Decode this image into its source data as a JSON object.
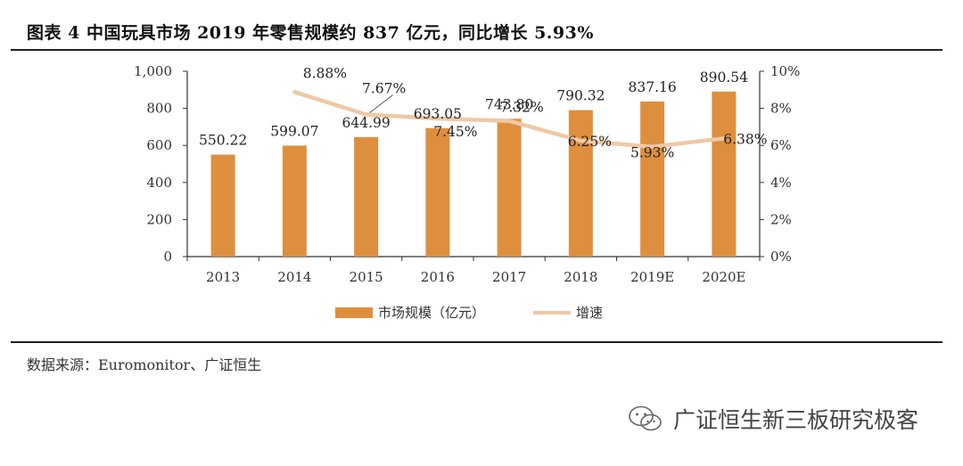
{
  "header": {
    "title": "图表 4 中国玩具市场 2019 年零售规模约 837 亿元，同比增长 5.93%"
  },
  "footer": {
    "source": "数据来源：Euromonitor、广证恒生",
    "watermark": "广证恒生新三板研究极客"
  },
  "chart_data": {
    "type": "bar",
    "categories": [
      "2013",
      "2014",
      "2015",
      "2016",
      "2017",
      "2018",
      "2019E",
      "2020E"
    ],
    "series": [
      {
        "name": "市场规模（亿元）",
        "type": "bar",
        "axis": "left",
        "values": [
          550.22,
          599.07,
          644.99,
          693.05,
          743.8,
          790.32,
          837.16,
          890.54
        ],
        "labels": [
          "550.22",
          "599.07",
          "644.99",
          "693.05",
          "743.80",
          "790.32",
          "837.16",
          "890.54"
        ],
        "color": "#de8f3e"
      },
      {
        "name": "增速",
        "type": "line",
        "axis": "right",
        "values": [
          null,
          8.88,
          7.67,
          7.45,
          7.32,
          6.25,
          5.93,
          6.38
        ],
        "labels": [
          "",
          "8.88%",
          "7.67%",
          "7.45%",
          "7.32%",
          "6.25%",
          "5.93%",
          "6.38%"
        ],
        "color": "#f0c8a4"
      }
    ],
    "y_left": {
      "min": 0,
      "max": 1000,
      "ticks": [
        "0",
        "200",
        "400",
        "600",
        "800",
        "1,000"
      ]
    },
    "y_right": {
      "min": 0,
      "max": 10,
      "ticks": [
        "0%",
        "2%",
        "4%",
        "6%",
        "8%",
        "10%"
      ]
    },
    "legend": {
      "position": "bottom"
    },
    "grid": false
  }
}
